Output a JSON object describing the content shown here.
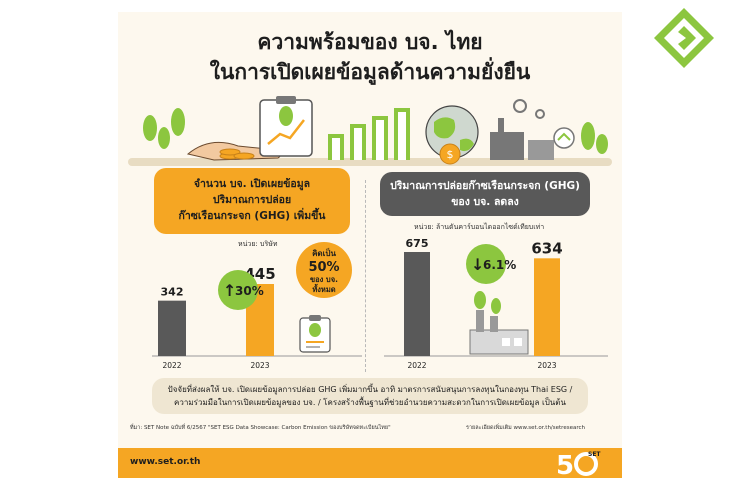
{
  "header": {
    "title_line1": "ความพร้อมของ บจ. ไทย",
    "title_line2": "ในการเปิดเผยข้อมูลด้านความยั่งยืน"
  },
  "left_panel": {
    "title_line1": "จำนวน บจ. เปิดเผยข้อมูล",
    "title_line2": "ปริมาณการปล่อย",
    "title_line3": "ก๊าซเรือนกระจก (GHG) เพิ่มขึ้น",
    "unit": "หน่วย: บริษัท",
    "change_label": "30%",
    "callout_line1": "คิดเป็น",
    "callout_line2": "50%",
    "callout_line3": "ของ บจ.",
    "callout_line4": "ทั้งหมด"
  },
  "right_panel": {
    "title_line1": "ปริมาณการปล่อยก๊าซเรือนกระจก (GHG)",
    "title_line2": "ของ บจ. ลดลง",
    "unit": "หน่วย: ล้านตันคาร์บอนไดออกไซด์เทียบเท่า",
    "change_label": "6.1%"
  },
  "chart_data": [
    {
      "type": "bar",
      "categories": [
        "2022",
        "2023"
      ],
      "values": [
        342,
        445
      ],
      "colors": [
        "#595959",
        "#f5a623"
      ]
    },
    {
      "type": "bar",
      "categories": [
        "2022",
        "2023"
      ],
      "values": [
        675,
        634
      ],
      "colors": [
        "#595959",
        "#f5a623"
      ]
    }
  ],
  "note": {
    "line1": "ปัจจัยที่ส่งผลให้ บจ. เปิดเผยข้อมูลการปล่อย GHG เพิ่มมากขึ้น อาทิ มาตรการสนับสนุนการลงทุนในกองทุน Thai ESG /",
    "line2": "ความร่วมมือในการเปิดเผยข้อมูลของ บจ. / โครงสร้างพื้นฐานที่ช่วยอำนวยความสะดวกในการเปิดเผยข้อมูล เป็นต้น"
  },
  "source": "ที่มา: SET Note ฉบับที่ 6/2567 \"SET ESG Data Showcase: Carbon Emission ของบริษัทจดทะเบียนไทย\"",
  "more_info": "รายละเอียดเพิ่มเติม www.set.or.th/setresearch",
  "footer": {
    "url": "www.set.or.th",
    "logo_text": "SET"
  },
  "colors": {
    "orange": "#f5a623",
    "gray": "#595959",
    "green": "#8cc63f",
    "background": "#fdf8ee"
  }
}
